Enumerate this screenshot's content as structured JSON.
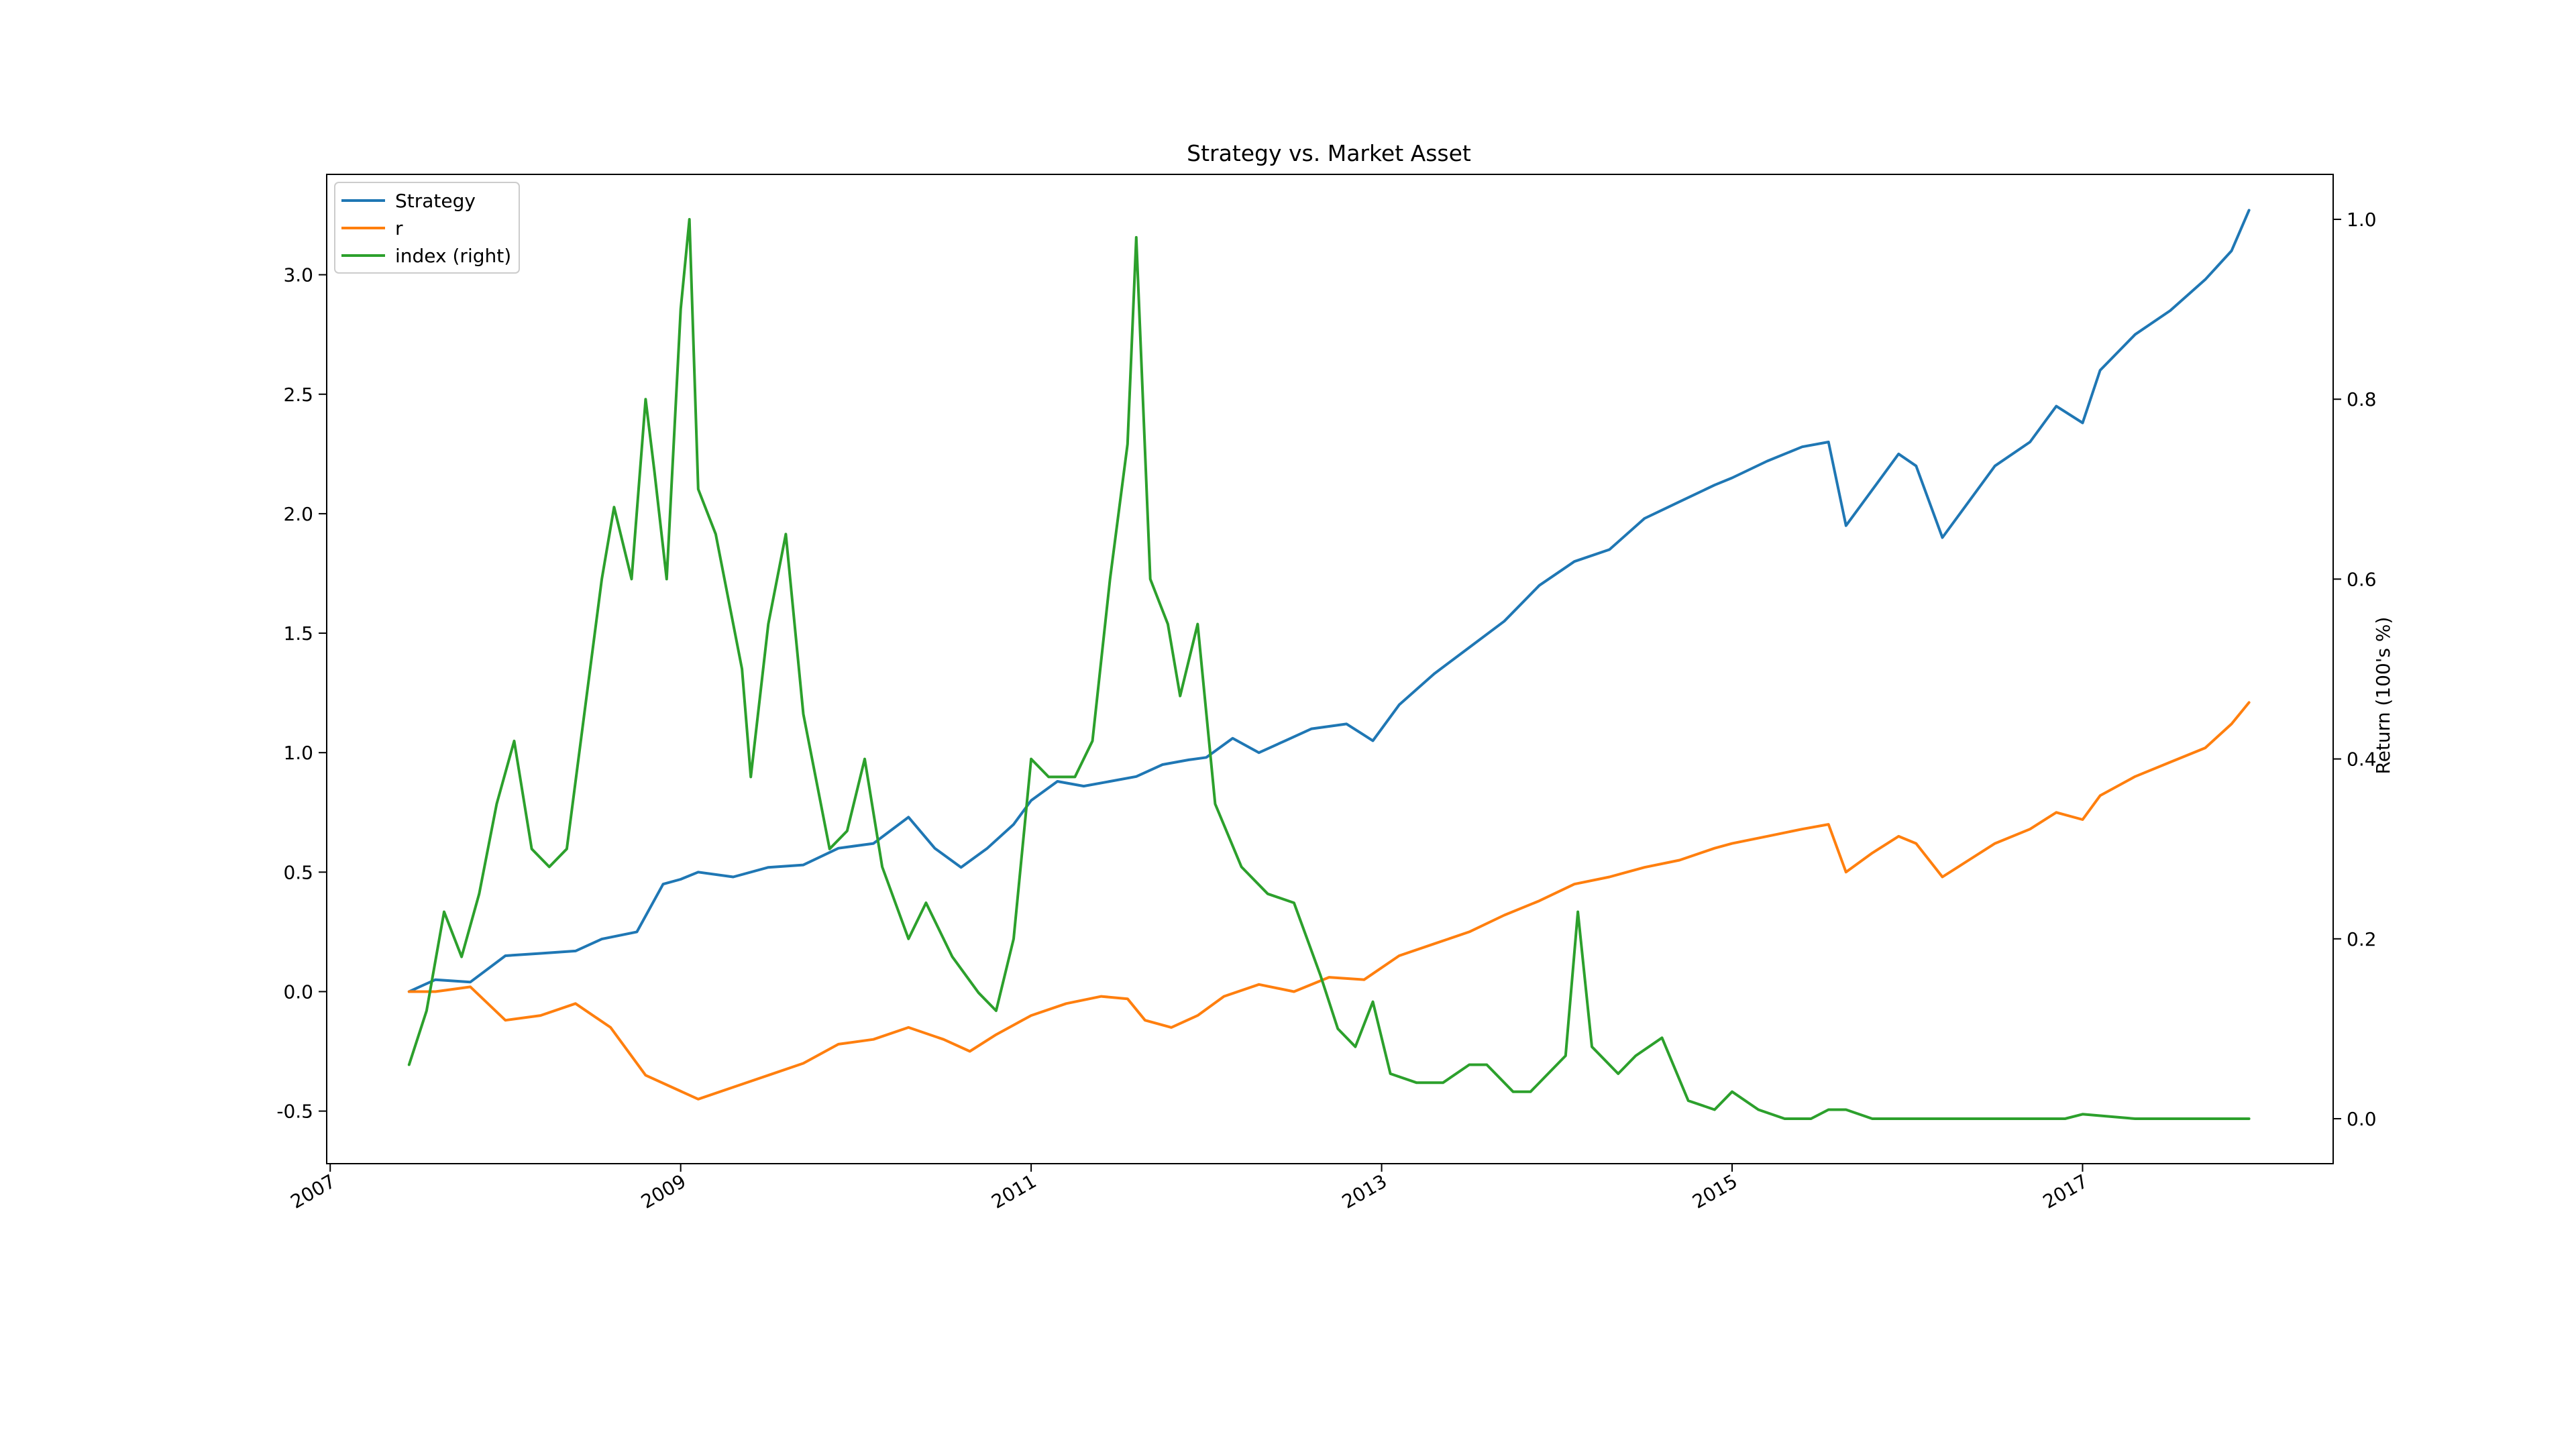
{
  "chart_data": {
    "type": "line",
    "title": "Strategy vs. Market Asset",
    "xlabel": "",
    "ylabel_left": "",
    "ylabel_right": "Return (100's %)",
    "x_ticks": [
      "2007",
      "2009",
      "2011",
      "2013",
      "2015",
      "2017"
    ],
    "x_range": [
      2006.98,
      2018.43
    ],
    "ylim_left": [
      -0.72,
      3.42
    ],
    "ylim_right": [
      -0.05,
      1.05
    ],
    "y_ticks_left": [
      "-0.5",
      "0.0",
      "0.5",
      "1.0",
      "1.5",
      "2.0",
      "2.5",
      "3.0"
    ],
    "y_ticks_right": [
      "0.0",
      "0.2",
      "0.4",
      "0.6",
      "0.8",
      "1.0"
    ],
    "grid": false,
    "legend_position": "top-left",
    "series": [
      {
        "name": "Strategy",
        "axis": "left",
        "color": "#1f77b4",
        "points": [
          [
            2007.45,
            0.0
          ],
          [
            2007.6,
            0.05
          ],
          [
            2007.8,
            0.04
          ],
          [
            2008.0,
            0.15
          ],
          [
            2008.2,
            0.16
          ],
          [
            2008.4,
            0.17
          ],
          [
            2008.55,
            0.22
          ],
          [
            2008.75,
            0.25
          ],
          [
            2008.9,
            0.45
          ],
          [
            2009.0,
            0.47
          ],
          [
            2009.1,
            0.5
          ],
          [
            2009.3,
            0.48
          ],
          [
            2009.5,
            0.52
          ],
          [
            2009.7,
            0.53
          ],
          [
            2009.9,
            0.6
          ],
          [
            2010.1,
            0.62
          ],
          [
            2010.3,
            0.73
          ],
          [
            2010.45,
            0.6
          ],
          [
            2010.6,
            0.52
          ],
          [
            2010.75,
            0.6
          ],
          [
            2010.9,
            0.7
          ],
          [
            2011.0,
            0.8
          ],
          [
            2011.15,
            0.88
          ],
          [
            2011.3,
            0.86
          ],
          [
            2011.45,
            0.88
          ],
          [
            2011.6,
            0.9
          ],
          [
            2011.75,
            0.95
          ],
          [
            2011.9,
            0.97
          ],
          [
            2012.0,
            0.98
          ],
          [
            2012.15,
            1.06
          ],
          [
            2012.3,
            1.0
          ],
          [
            2012.45,
            1.05
          ],
          [
            2012.6,
            1.1
          ],
          [
            2012.8,
            1.12
          ],
          [
            2012.95,
            1.05
          ],
          [
            2013.1,
            1.2
          ],
          [
            2013.3,
            1.33
          ],
          [
            2013.5,
            1.44
          ],
          [
            2013.7,
            1.55
          ],
          [
            2013.9,
            1.7
          ],
          [
            2014.1,
            1.8
          ],
          [
            2014.3,
            1.85
          ],
          [
            2014.5,
            1.98
          ],
          [
            2014.7,
            2.05
          ],
          [
            2014.9,
            2.12
          ],
          [
            2015.0,
            2.15
          ],
          [
            2015.2,
            2.22
          ],
          [
            2015.4,
            2.28
          ],
          [
            2015.55,
            2.3
          ],
          [
            2015.65,
            1.95
          ],
          [
            2015.8,
            2.1
          ],
          [
            2015.95,
            2.25
          ],
          [
            2016.05,
            2.2
          ],
          [
            2016.2,
            1.9
          ],
          [
            2016.35,
            2.05
          ],
          [
            2016.5,
            2.2
          ],
          [
            2016.7,
            2.3
          ],
          [
            2016.85,
            2.45
          ],
          [
            2017.0,
            2.38
          ],
          [
            2017.1,
            2.6
          ],
          [
            2017.3,
            2.75
          ],
          [
            2017.5,
            2.85
          ],
          [
            2017.7,
            2.98
          ],
          [
            2017.85,
            3.1
          ],
          [
            2017.95,
            3.27
          ]
        ]
      },
      {
        "name": "r",
        "axis": "left",
        "color": "#ff7f0e",
        "points": [
          [
            2007.45,
            0.0
          ],
          [
            2007.6,
            0.0
          ],
          [
            2007.8,
            0.02
          ],
          [
            2008.0,
            -0.12
          ],
          [
            2008.2,
            -0.1
          ],
          [
            2008.4,
            -0.05
          ],
          [
            2008.6,
            -0.15
          ],
          [
            2008.8,
            -0.35
          ],
          [
            2008.95,
            -0.4
          ],
          [
            2009.1,
            -0.45
          ],
          [
            2009.3,
            -0.4
          ],
          [
            2009.5,
            -0.35
          ],
          [
            2009.7,
            -0.3
          ],
          [
            2009.9,
            -0.22
          ],
          [
            2010.1,
            -0.2
          ],
          [
            2010.3,
            -0.15
          ],
          [
            2010.5,
            -0.2
          ],
          [
            2010.65,
            -0.25
          ],
          [
            2010.8,
            -0.18
          ],
          [
            2011.0,
            -0.1
          ],
          [
            2011.2,
            -0.05
          ],
          [
            2011.4,
            -0.02
          ],
          [
            2011.55,
            -0.03
          ],
          [
            2011.65,
            -0.12
          ],
          [
            2011.8,
            -0.15
          ],
          [
            2011.95,
            -0.1
          ],
          [
            2012.1,
            -0.02
          ],
          [
            2012.3,
            0.03
          ],
          [
            2012.5,
            0.0
          ],
          [
            2012.7,
            0.06
          ],
          [
            2012.9,
            0.05
          ],
          [
            2013.1,
            0.15
          ],
          [
            2013.3,
            0.2
          ],
          [
            2013.5,
            0.25
          ],
          [
            2013.7,
            0.32
          ],
          [
            2013.9,
            0.38
          ],
          [
            2014.1,
            0.45
          ],
          [
            2014.3,
            0.48
          ],
          [
            2014.5,
            0.52
          ],
          [
            2014.7,
            0.55
          ],
          [
            2014.9,
            0.6
          ],
          [
            2015.0,
            0.62
          ],
          [
            2015.2,
            0.65
          ],
          [
            2015.4,
            0.68
          ],
          [
            2015.55,
            0.7
          ],
          [
            2015.65,
            0.5
          ],
          [
            2015.8,
            0.58
          ],
          [
            2015.95,
            0.65
          ],
          [
            2016.05,
            0.62
          ],
          [
            2016.2,
            0.48
          ],
          [
            2016.35,
            0.55
          ],
          [
            2016.5,
            0.62
          ],
          [
            2016.7,
            0.68
          ],
          [
            2016.85,
            0.75
          ],
          [
            2017.0,
            0.72
          ],
          [
            2017.1,
            0.82
          ],
          [
            2017.3,
            0.9
          ],
          [
            2017.5,
            0.96
          ],
          [
            2017.7,
            1.02
          ],
          [
            2017.85,
            1.12
          ],
          [
            2017.95,
            1.21
          ]
        ]
      },
      {
        "name": "index (right)",
        "axis": "right",
        "color": "#2ca02c",
        "points": [
          [
            2007.45,
            0.06
          ],
          [
            2007.55,
            0.12
          ],
          [
            2007.65,
            0.23
          ],
          [
            2007.75,
            0.18
          ],
          [
            2007.85,
            0.25
          ],
          [
            2007.95,
            0.35
          ],
          [
            2008.05,
            0.42
          ],
          [
            2008.15,
            0.3
          ],
          [
            2008.25,
            0.28
          ],
          [
            2008.35,
            0.3
          ],
          [
            2008.45,
            0.45
          ],
          [
            2008.55,
            0.6
          ],
          [
            2008.62,
            0.68
          ],
          [
            2008.72,
            0.6
          ],
          [
            2008.8,
            0.8
          ],
          [
            2008.85,
            0.72
          ],
          [
            2008.92,
            0.6
          ],
          [
            2009.0,
            0.9
          ],
          [
            2009.05,
            1.0
          ],
          [
            2009.1,
            0.7
          ],
          [
            2009.2,
            0.65
          ],
          [
            2009.35,
            0.5
          ],
          [
            2009.4,
            0.38
          ],
          [
            2009.5,
            0.55
          ],
          [
            2009.6,
            0.65
          ],
          [
            2009.7,
            0.45
          ],
          [
            2009.85,
            0.3
          ],
          [
            2009.95,
            0.32
          ],
          [
            2010.05,
            0.4
          ],
          [
            2010.15,
            0.28
          ],
          [
            2010.3,
            0.2
          ],
          [
            2010.4,
            0.24
          ],
          [
            2010.55,
            0.18
          ],
          [
            2010.7,
            0.14
          ],
          [
            2010.8,
            0.12
          ],
          [
            2010.9,
            0.2
          ],
          [
            2011.0,
            0.4
          ],
          [
            2011.1,
            0.38
          ],
          [
            2011.25,
            0.38
          ],
          [
            2011.35,
            0.42
          ],
          [
            2011.45,
            0.6
          ],
          [
            2011.55,
            0.75
          ],
          [
            2011.6,
            0.98
          ],
          [
            2011.68,
            0.6
          ],
          [
            2011.78,
            0.55
          ],
          [
            2011.85,
            0.47
          ],
          [
            2011.95,
            0.55
          ],
          [
            2012.05,
            0.35
          ],
          [
            2012.2,
            0.28
          ],
          [
            2012.35,
            0.25
          ],
          [
            2012.5,
            0.24
          ],
          [
            2012.65,
            0.16
          ],
          [
            2012.75,
            0.1
          ],
          [
            2012.85,
            0.08
          ],
          [
            2012.95,
            0.13
          ],
          [
            2013.05,
            0.05
          ],
          [
            2013.2,
            0.04
          ],
          [
            2013.35,
            0.04
          ],
          [
            2013.5,
            0.06
          ],
          [
            2013.6,
            0.06
          ],
          [
            2013.75,
            0.03
          ],
          [
            2013.85,
            0.03
          ],
          [
            2013.95,
            0.05
          ],
          [
            2014.05,
            0.07
          ],
          [
            2014.12,
            0.23
          ],
          [
            2014.2,
            0.08
          ],
          [
            2014.35,
            0.05
          ],
          [
            2014.45,
            0.07
          ],
          [
            2014.6,
            0.09
          ],
          [
            2014.75,
            0.02
          ],
          [
            2014.9,
            0.01
          ],
          [
            2015.0,
            0.03
          ],
          [
            2015.15,
            0.01
          ],
          [
            2015.3,
            0.0
          ],
          [
            2015.45,
            0.0
          ],
          [
            2015.55,
            0.01
          ],
          [
            2015.65,
            0.01
          ],
          [
            2015.8,
            0.0
          ],
          [
            2016.0,
            0.0
          ],
          [
            2016.2,
            0.0
          ],
          [
            2016.5,
            0.0
          ],
          [
            2016.7,
            0.0
          ],
          [
            2016.9,
            0.0
          ],
          [
            2017.0,
            0.005
          ],
          [
            2017.3,
            0.0
          ],
          [
            2017.6,
            0.0
          ],
          [
            2017.95,
            0.0
          ]
        ]
      }
    ]
  }
}
